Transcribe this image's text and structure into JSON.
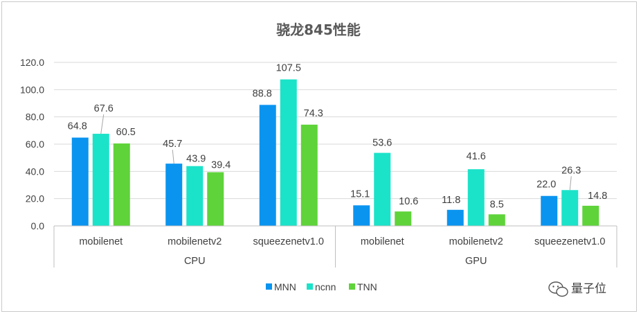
{
  "chart_data": {
    "type": "bar",
    "title": "骁龙845性能",
    "groups": [
      "CPU",
      "GPU"
    ],
    "categories": [
      "mobilenet",
      "mobilenetv2",
      "squeezenetv1.0",
      "mobilenet",
      "mobilenetv2",
      "squeezenetv1.0"
    ],
    "series": [
      {
        "name": "MNN",
        "color": "#0a94f0",
        "values": [
          64.8,
          45.7,
          88.8,
          15.1,
          11.8,
          22.0
        ]
      },
      {
        "name": "ncnn",
        "color": "#1be3c9",
        "values": [
          67.6,
          43.9,
          107.5,
          53.6,
          41.6,
          26.3
        ]
      },
      {
        "name": "TNN",
        "color": "#5fd33a",
        "values": [
          60.5,
          39.4,
          74.3,
          10.6,
          8.5,
          14.8
        ]
      }
    ],
    "ylim": [
      0,
      120
    ],
    "yticks": [
      "0.0",
      "20.0",
      "40.0",
      "60.0",
      "80.0",
      "100.0",
      "120.0"
    ],
    "grid": true,
    "legend_position": "bottom",
    "xlabel": "",
    "ylabel": ""
  },
  "watermark": {
    "text": "量子位",
    "icon": "wechat-icon"
  }
}
